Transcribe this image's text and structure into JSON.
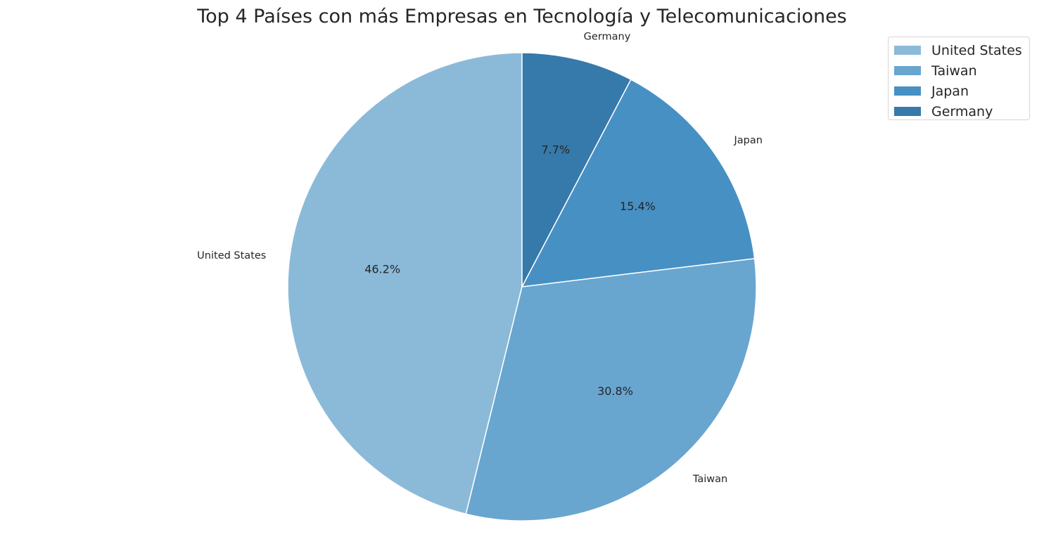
{
  "chart_data": {
    "type": "pie",
    "title": "Top 4 Países con más Empresas en Tecnología y Telecomunicaciones",
    "categories": [
      "United States",
      "Taiwan",
      "Japan",
      "Germany"
    ],
    "values": [
      46.2,
      30.8,
      15.4,
      7.7
    ],
    "value_labels": [
      "46.2%",
      "30.8%",
      "15.4%",
      "7.7%"
    ],
    "colors": [
      "#8bbad9",
      "#68a6d0",
      "#4790c4",
      "#3679ab"
    ],
    "start_angle_deg": 90,
    "direction": "counterclockwise",
    "legend": {
      "placement": "top-right",
      "entries": [
        "United States",
        "Taiwan",
        "Japan",
        "Germany"
      ]
    }
  }
}
